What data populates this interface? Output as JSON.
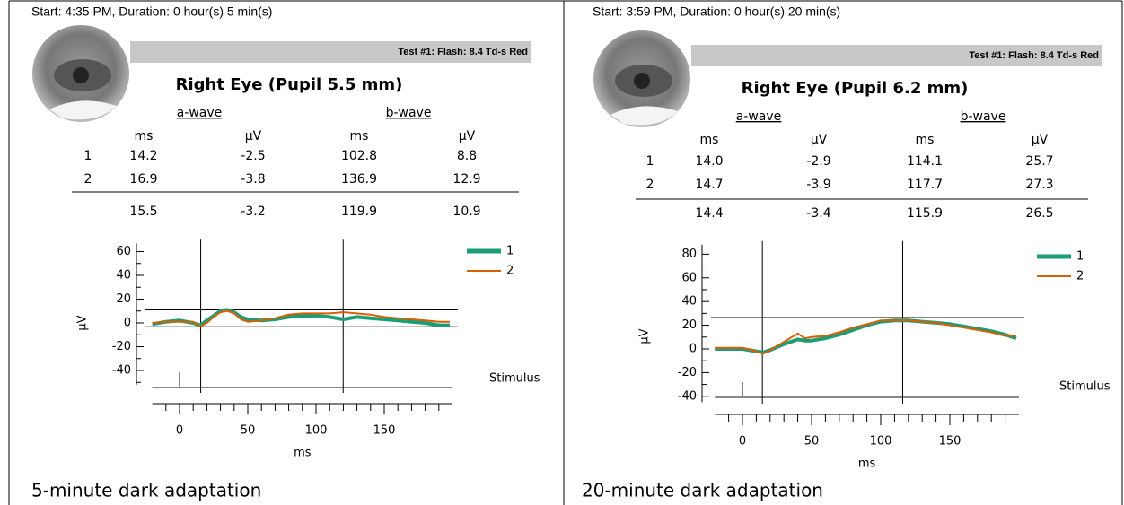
{
  "panels": [
    {
      "start": "Start: 4:35 PM, Duration: 0 hour(s) 5 min(s)",
      "test": "Test #1:  Flash: 8.4 Td-s Red",
      "title": "Right Eye (Pupil 5.5 mm)",
      "table": {
        "groups": [
          "a-wave",
          "b-wave"
        ],
        "columns": [
          "ms",
          "µV",
          "ms",
          "µV"
        ],
        "rows": [
          [
            "1",
            "14.2",
            "-2.5",
            "102.8",
            "8.8"
          ],
          [
            "2",
            "16.9",
            "-3.8",
            "136.9",
            "12.9"
          ]
        ],
        "mean": [
          "15.5",
          "-3.2",
          "119.9",
          "10.9"
        ]
      },
      "caption": "5-minute dark adaptation"
    },
    {
      "start": "Start: 3:59 PM, Duration: 0 hour(s) 20 min(s)",
      "test": "Test #1:  Flash: 8.4 Td-s Red",
      "title": "Right Eye (Pupil 6.2 mm)",
      "table": {
        "groups": [
          "a-wave",
          "b-wave"
        ],
        "columns": [
          "ms",
          "µV",
          "ms",
          "µV"
        ],
        "rows": [
          [
            "1",
            "14.0",
            "-2.9",
            "114.1",
            "25.7"
          ],
          [
            "2",
            "14.7",
            "-3.9",
            "117.7",
            "27.3"
          ]
        ],
        "mean": [
          "14.4",
          "-3.4",
          "115.9",
          "26.5"
        ]
      },
      "caption": "20-minute dark adaptation"
    }
  ],
  "chart_data": [
    {
      "type": "line",
      "xlabel": "ms",
      "ylabel": "µV",
      "stimulus_label": "Stimulus",
      "x": [
        -20,
        -10,
        0,
        10,
        15,
        20,
        25,
        30,
        35,
        40,
        45,
        50,
        60,
        70,
        80,
        90,
        100,
        110,
        120,
        130,
        140,
        150,
        160,
        170,
        180,
        190,
        198
      ],
      "series": [
        {
          "name": "1",
          "color": "#1b9e77",
          "values": [
            -1,
            1,
            2,
            0,
            -2,
            2,
            6,
            10,
            11,
            9,
            5,
            3,
            2,
            3,
            5,
            6,
            6,
            5,
            3,
            5,
            4,
            3,
            2,
            1,
            0,
            -2,
            -2
          ]
        },
        {
          "name": "2",
          "color": "#d95f02",
          "values": [
            0,
            1,
            1,
            1,
            -3,
            0,
            5,
            9,
            10,
            8,
            3,
            1,
            2,
            4,
            7,
            8,
            8,
            8,
            9,
            8,
            7,
            5,
            4,
            3,
            2,
            1,
            1
          ]
        }
      ],
      "xlim": [
        -20,
        200
      ],
      "ylim": [
        -52,
        67
      ],
      "xticks": [
        0,
        50,
        100,
        150
      ],
      "yticks": [
        60,
        40,
        20,
        0,
        -20,
        -40
      ],
      "xminor": [
        -10,
        10,
        20,
        30,
        40,
        60,
        70,
        80,
        90,
        110,
        120,
        130,
        140,
        160,
        170,
        180,
        190
      ],
      "yminor": [
        50,
        30,
        10,
        -10,
        -30,
        -50
      ]
    },
    {
      "type": "line",
      "xlabel": "ms",
      "ylabel": "µV",
      "stimulus_label": "Stimulus",
      "x": [
        -20,
        -10,
        0,
        10,
        15,
        20,
        30,
        40,
        45,
        50,
        60,
        70,
        80,
        90,
        100,
        110,
        120,
        130,
        140,
        150,
        160,
        170,
        180,
        190,
        198
      ],
      "series": [
        {
          "name": "1",
          "color": "#1b9e77",
          "values": [
            0,
            0,
            0,
            -2,
            -3,
            -1,
            4,
            8,
            7,
            7,
            9,
            12,
            16,
            20,
            23,
            24,
            24,
            23,
            22,
            21,
            19,
            17,
            15,
            12,
            9
          ]
        },
        {
          "name": "2",
          "color": "#d95f02",
          "values": [
            1,
            1,
            1,
            -2,
            -4,
            -1,
            6,
            13,
            9,
            10,
            11,
            14,
            18,
            21,
            24,
            24,
            24,
            23,
            22,
            20,
            18,
            16,
            14,
            11,
            11
          ]
        }
      ],
      "xlim": [
        -20,
        200
      ],
      "ylim": [
        -45,
        88
      ],
      "xticks": [
        0,
        50,
        100,
        150
      ],
      "yticks": [
        80,
        60,
        40,
        20,
        0,
        -20,
        -40
      ],
      "xminor": [
        -10,
        10,
        20,
        30,
        40,
        60,
        70,
        80,
        90,
        110,
        120,
        130,
        140,
        160,
        170,
        180,
        190
      ],
      "yminor": [
        70,
        50,
        30,
        10,
        -10,
        -30
      ]
    }
  ]
}
